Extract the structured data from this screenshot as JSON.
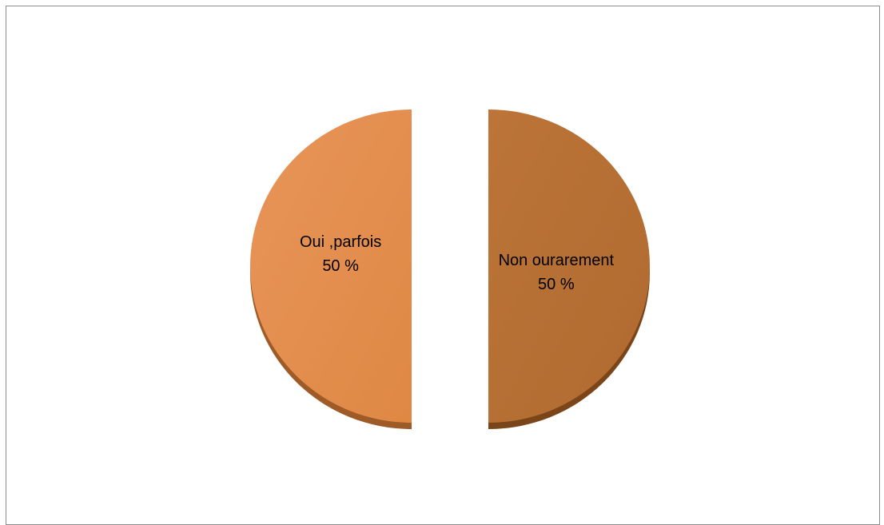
{
  "chart_data": {
    "type": "pie",
    "title": "",
    "exploded": true,
    "style": "3d-tilted",
    "slices": [
      {
        "name": "Oui ,parfois",
        "value": 50,
        "percent_label": "50 %",
        "color": "#E38C4A",
        "shade": "#9E5A27"
      },
      {
        "name": "Non ourarement",
        "value": 50,
        "percent_label": "50 %",
        "color": "#B56E33",
        "shade": "#7A4518"
      }
    ]
  }
}
